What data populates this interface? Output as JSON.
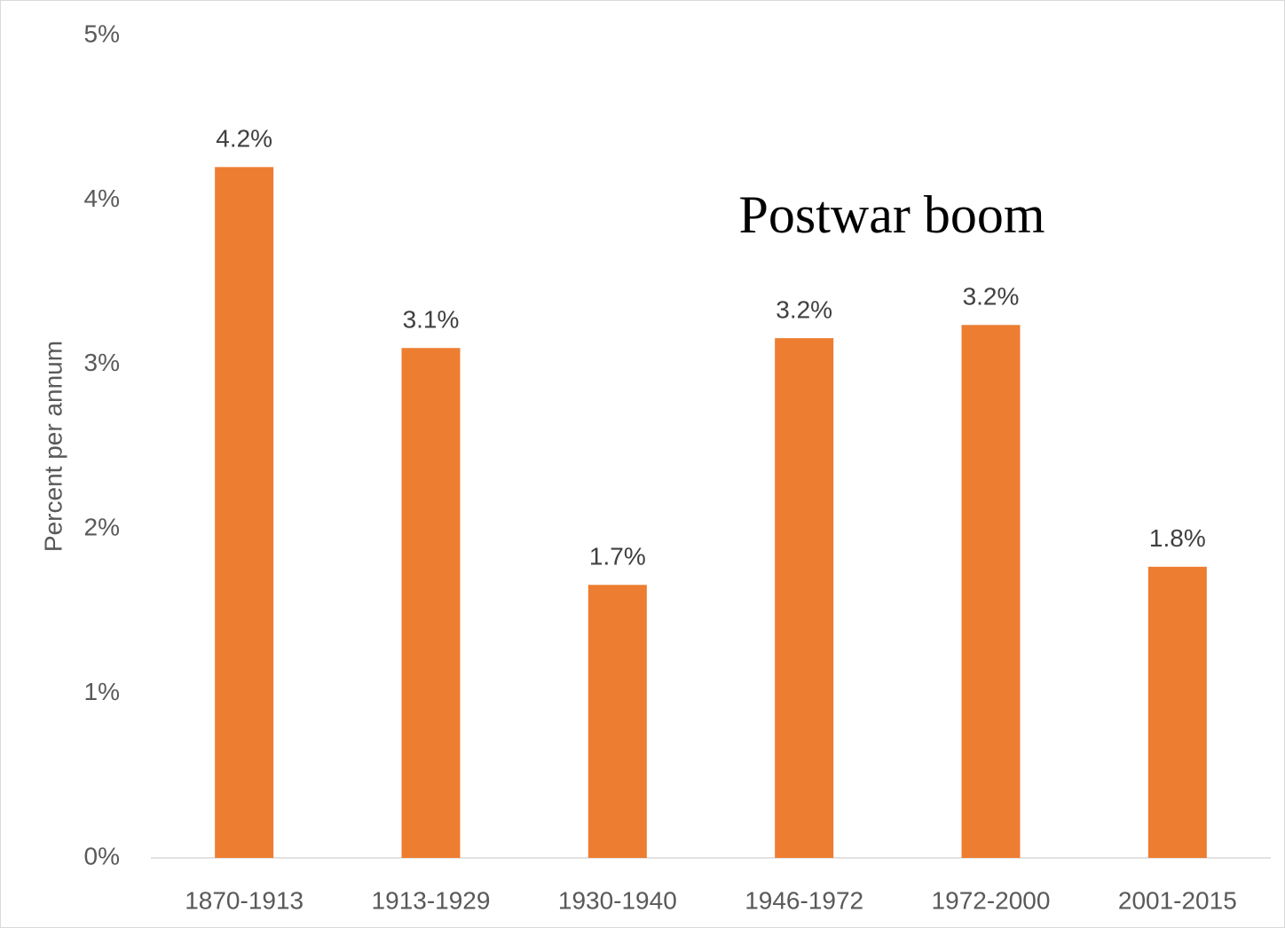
{
  "chart_data": {
    "type": "bar",
    "y_label": "Percent per annum",
    "annotation": "Postwar boom",
    "categories": [
      "1870-1913",
      "1913-1929",
      "1930-1940",
      "1946-1972",
      "1972-2000",
      "2001-2015"
    ],
    "values": [
      4.2,
      3.1,
      1.66,
      3.16,
      3.24,
      1.77
    ],
    "value_labels": [
      "4.2%",
      "3.1%",
      "1.7%",
      "3.2%",
      "3.2%",
      "1.8%"
    ],
    "color": "#ed7d31",
    "ylim": [
      0,
      5
    ],
    "yticks": [
      {
        "value": 0,
        "label": "0%"
      },
      {
        "value": 1,
        "label": "1%"
      },
      {
        "value": 2,
        "label": "2%"
      },
      {
        "value": 3,
        "label": "3%"
      },
      {
        "value": 4,
        "label": "4%"
      },
      {
        "value": 5,
        "label": "5%"
      }
    ],
    "grid": false
  }
}
